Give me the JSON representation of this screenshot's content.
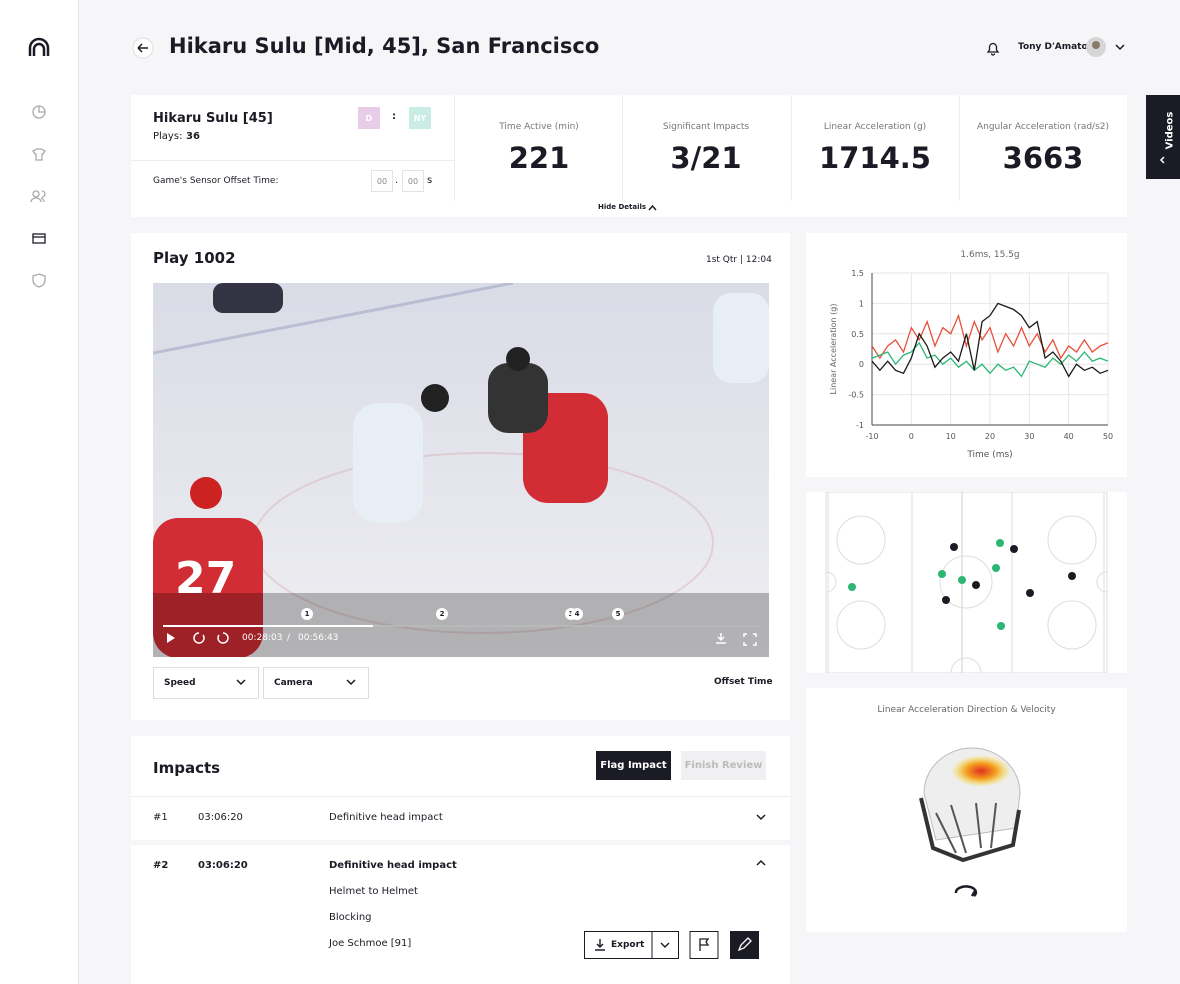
{
  "header": {
    "title": "Hikaru Sulu [Mid, 45], San Francisco",
    "user": "Tony D'Amato"
  },
  "player": {
    "name": "Hikaru Sulu [45]",
    "plays_label": "Plays:",
    "plays": "36",
    "team_a": "D",
    "team_sep": ":",
    "team_b": "NY",
    "offset_label": "Game's Sensor Offset Time:",
    "offset_fields": [
      "00",
      "00"
    ],
    "offset_dot": ".",
    "offset_unit": "s"
  },
  "stats": [
    {
      "label": "Time Active (min)",
      "value": "221"
    },
    {
      "label": "Significant Impacts",
      "value": "3/21"
    },
    {
      "label": "Linear Acceleration (g)",
      "value": "1714.5"
    },
    {
      "label": "Angular Acceleration (rad/s2)",
      "value": "3663"
    }
  ],
  "hide_details": "Hide Details",
  "side_tab": "Videos",
  "play": {
    "title": "Play 1002",
    "time": "1st Qtr | 12:04",
    "current": "00:28:03",
    "time_sep": "/",
    "total": "00:56:43",
    "markers": [
      "1",
      "2",
      "3",
      "4",
      "5"
    ],
    "speed": "Speed",
    "camera": "Camera",
    "offset": "Offset Time"
  },
  "impacts": {
    "title": "Impacts",
    "flag": "Flag Impact",
    "finish": "Finish Review",
    "export": "Export",
    "rows": [
      {
        "num": "#1",
        "time": "03:06:20",
        "desc": "Definitive head impact"
      },
      {
        "num": "#2",
        "time": "03:06:20",
        "desc": "Definitive head impact",
        "details": [
          "Helmet to Helmet",
          "Blocking",
          "Joe Schmoe [91]"
        ]
      }
    ]
  },
  "helmet_title": "Linear Acceleration Direction & Velocity",
  "chart_data": {
    "type": "line",
    "title": "1.6ms, 15.5g",
    "x_label": "Time (ms)",
    "y_label": "Linear Acceleration (g)",
    "x": [
      -10,
      -8,
      -6,
      -4,
      -2,
      0,
      2,
      4,
      6,
      8,
      10,
      12,
      14,
      16,
      18,
      20,
      22,
      24,
      26,
      28,
      30,
      32,
      34,
      36,
      38,
      40,
      42,
      44,
      46,
      48,
      50
    ],
    "series": [
      {
        "color": "#e8503a",
        "values": [
          0.3,
          0.1,
          0.3,
          0.4,
          0.2,
          0.6,
          0.4,
          0.7,
          0.3,
          0.6,
          0.5,
          0.8,
          0.3,
          0.7,
          0.4,
          0.6,
          0.2,
          0.5,
          0.3,
          0.6,
          0.3,
          0.5,
          0.2,
          0.4,
          0.1,
          0.3,
          0.2,
          0.4,
          0.2,
          0.3,
          0.35
        ]
      },
      {
        "color": "#2bb673",
        "values": [
          0.1,
          0.15,
          0.2,
          0,
          0.15,
          0.2,
          0.35,
          0.1,
          0.15,
          0,
          0.1,
          -0.05,
          0.05,
          -0.1,
          0,
          -0.15,
          0,
          -0.1,
          -0.05,
          -0.2,
          0.05,
          0,
          -0.05,
          0.1,
          0,
          0.15,
          0.05,
          0.2,
          0.05,
          0.1,
          0.05
        ]
      },
      {
        "color": "#1a1a1a",
        "values": [
          0.05,
          -0.1,
          0.05,
          -0.1,
          -0.15,
          0.1,
          0.5,
          0.3,
          -0.05,
          0.1,
          0.2,
          0.05,
          0.5,
          -0.1,
          0.7,
          0.8,
          1.0,
          0.95,
          0.9,
          0.8,
          0.6,
          0.7,
          0.1,
          0.2,
          0.05,
          -0.2,
          0,
          -0.1,
          -0.05,
          -0.15,
          -0.1
        ]
      }
    ],
    "xlim": [
      -10,
      50
    ],
    "xticks": [
      -10,
      0,
      10,
      20,
      30,
      40,
      50
    ],
    "ylim": [
      -1,
      1.5
    ],
    "yticks": [
      -1,
      -0.5,
      0,
      0.5,
      1,
      1.5
    ],
    "grid": true
  }
}
